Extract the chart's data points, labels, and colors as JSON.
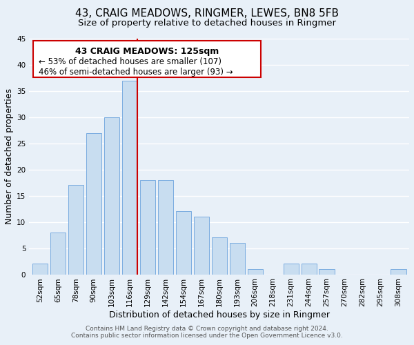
{
  "title": "43, CRAIG MEADOWS, RINGMER, LEWES, BN8 5FB",
  "subtitle": "Size of property relative to detached houses in Ringmer",
  "xlabel": "Distribution of detached houses by size in Ringmer",
  "ylabel": "Number of detached properties",
  "footer_lines": [
    "Contains HM Land Registry data © Crown copyright and database right 2024.",
    "Contains public sector information licensed under the Open Government Licence v3.0."
  ],
  "bar_labels": [
    "52sqm",
    "65sqm",
    "78sqm",
    "90sqm",
    "103sqm",
    "116sqm",
    "129sqm",
    "142sqm",
    "154sqm",
    "167sqm",
    "180sqm",
    "193sqm",
    "206sqm",
    "218sqm",
    "231sqm",
    "244sqm",
    "257sqm",
    "270sqm",
    "282sqm",
    "295sqm",
    "308sqm"
  ],
  "bar_values": [
    2,
    8,
    17,
    27,
    30,
    37,
    18,
    18,
    12,
    11,
    7,
    6,
    1,
    0,
    2,
    2,
    1,
    0,
    0,
    0,
    1
  ],
  "bar_color": "#c8ddf0",
  "bar_edge_color": "#7aace0",
  "highlight_bar_index": 5,
  "highlight_line_color": "#cc0000",
  "ylim": [
    0,
    45
  ],
  "yticks": [
    0,
    5,
    10,
    15,
    20,
    25,
    30,
    35,
    40,
    45
  ],
  "annotation_title": "43 CRAIG MEADOWS: 125sqm",
  "annotation_line1": "← 53% of detached houses are smaller (107)",
  "annotation_line2": "46% of semi-detached houses are larger (93) →",
  "annotation_box_color": "#ffffff",
  "annotation_box_edge_color": "#cc0000",
  "background_color": "#e8f0f8",
  "grid_color": "#ffffff",
  "title_fontsize": 11,
  "subtitle_fontsize": 9.5,
  "axis_label_fontsize": 9,
  "tick_fontsize": 7.5,
  "annotation_title_fontsize": 9,
  "annotation_text_fontsize": 8.5,
  "footer_fontsize": 6.5
}
